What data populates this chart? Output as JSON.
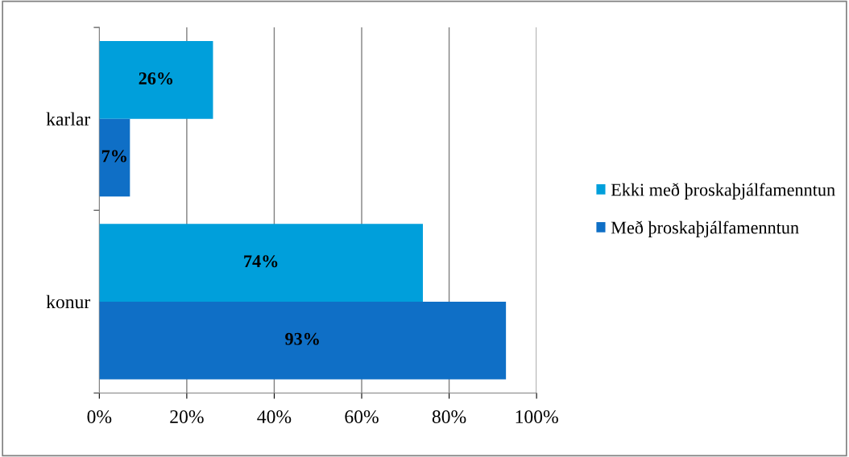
{
  "chart_data": {
    "type": "bar",
    "orientation": "horizontal",
    "categories": [
      "karlar",
      "konur"
    ],
    "series": [
      {
        "name": "Ekki með þroskaþjálfamenntun",
        "color": "#009fdb",
        "values": [
          26,
          74
        ],
        "value_labels": [
          "26%",
          "74%"
        ]
      },
      {
        "name": "Með þroskaþjálfamenntun",
        "color": "#0f6fc6",
        "values": [
          7,
          93
        ],
        "value_labels": [
          "7%",
          "93%"
        ]
      }
    ],
    "xlim": [
      0,
      100
    ],
    "xticks": [
      {
        "value": 0,
        "label": "0%"
      },
      {
        "value": 20,
        "label": "20%"
      },
      {
        "value": 40,
        "label": "40%"
      },
      {
        "value": 60,
        "label": "60%"
      },
      {
        "value": 80,
        "label": "80%"
      },
      {
        "value": 100,
        "label": "100%"
      }
    ],
    "grid": "x",
    "legend": "right"
  }
}
